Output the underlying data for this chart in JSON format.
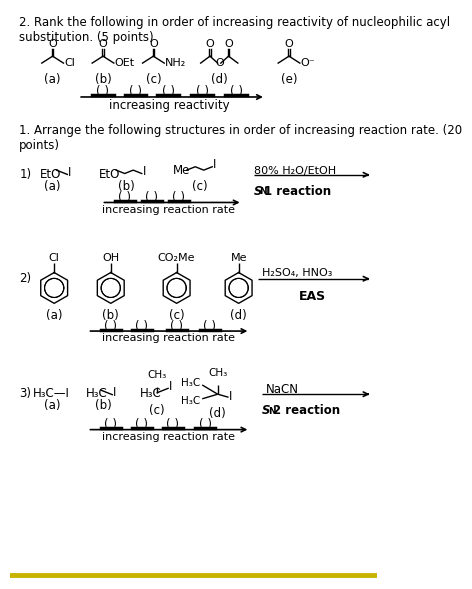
{
  "bg_color": "#ffffff",
  "q2_title": "2. Rank the following in order of increasing reactivity of nucleophilic acyl\nsubstitution. (5 points)",
  "q2_arrow_label": "increasing reactivity",
  "q1_title": "1. Arrange the following structures in order of increasing reaction rate. (20\npoints)",
  "rxn1_arrow_label": "increasing reaction rate",
  "rxn2_arrow_label": "increasing reaction rate",
  "rxn3_arrow_label": "increasing reaction rate",
  "gold_line_color": "#c8b400"
}
